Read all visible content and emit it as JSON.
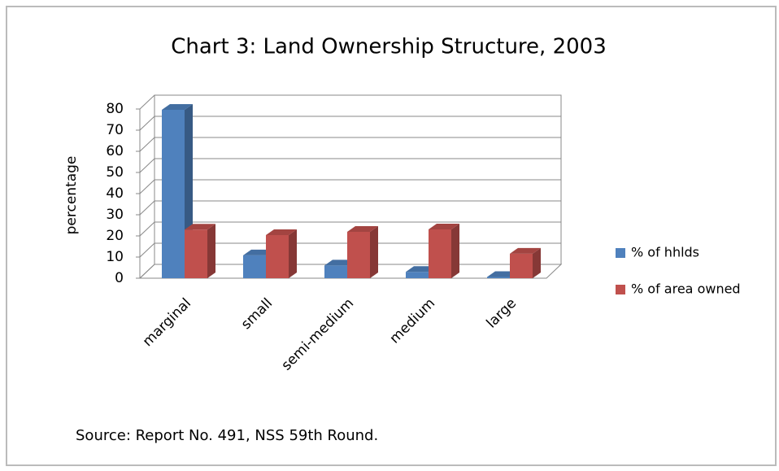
{
  "chart_data": {
    "type": "bar3d",
    "title": "Chart 3: Land Ownership Structure, 2003",
    "y_label": "percentage",
    "categories": [
      "marginal",
      "small",
      "semi-medium",
      "medium",
      "large"
    ],
    "series": [
      {
        "name": "% of hhlds",
        "color": "#4f81bd",
        "values": [
          79.6,
          10.8,
          6.0,
          3.0,
          0.6
        ]
      },
      {
        "name": "% of area owned",
        "color": "#c0504d",
        "values": [
          23.0,
          20.4,
          21.9,
          23.1,
          11.6
        ]
      }
    ],
    "ylim": [
      0,
      80
    ],
    "yticks": [
      0,
      10,
      20,
      30,
      40,
      50,
      60,
      70,
      80
    ],
    "grid": true,
    "legend": "right",
    "source": "Source: Report No. 491, NSS 59th Round."
  }
}
